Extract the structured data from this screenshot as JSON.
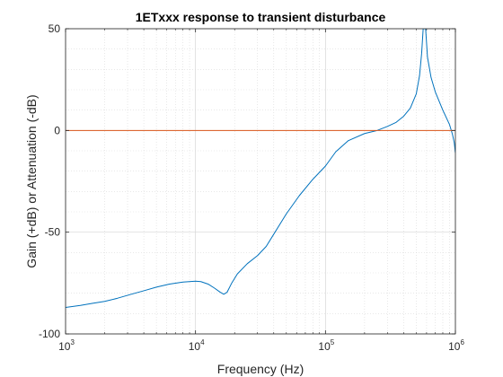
{
  "chart_data": {
    "type": "line",
    "title": "1ETxxx response to transient disturbance",
    "xlabel": "Frequency (Hz)",
    "ylabel": "Gain (+dB) or Attenuation (-dB)",
    "xscale": "log",
    "xlim": [
      1000,
      1000000
    ],
    "ylim": [
      -100,
      50
    ],
    "grid": "on",
    "minor_grid": "on",
    "legend": "none",
    "x_ticks": [
      {
        "base": "10",
        "exp": "3",
        "value": 1000
      },
      {
        "base": "10",
        "exp": "4",
        "value": 10000
      },
      {
        "base": "10",
        "exp": "5",
        "value": 100000
      },
      {
        "base": "10",
        "exp": "6",
        "value": 1000000
      }
    ],
    "y_ticks": [
      {
        "label": "50",
        "value": 50
      },
      {
        "label": "0",
        "value": 0
      },
      {
        "label": "-50",
        "value": -50
      },
      {
        "label": "-100",
        "value": -100
      }
    ],
    "series": [
      {
        "color": "#0072BD",
        "points": [
          [
            1000,
            -87
          ],
          [
            1300,
            -86
          ],
          [
            1600,
            -85
          ],
          [
            2000,
            -84
          ],
          [
            2500,
            -82.5
          ],
          [
            3200,
            -80.5
          ],
          [
            4000,
            -78.8
          ],
          [
            5000,
            -77
          ],
          [
            6300,
            -75.5
          ],
          [
            8000,
            -74.5
          ],
          [
            10000,
            -74.1
          ],
          [
            11000,
            -74.3
          ],
          [
            12500,
            -75.5
          ],
          [
            14000,
            -77.5
          ],
          [
            15500,
            -79.5
          ],
          [
            16500,
            -80.5
          ],
          [
            17500,
            -79.5
          ],
          [
            19000,
            -75
          ],
          [
            21000,
            -70.5
          ],
          [
            25000,
            -65.5
          ],
          [
            30000,
            -61.5
          ],
          [
            35000,
            -57
          ],
          [
            40000,
            -51
          ],
          [
            50000,
            -41
          ],
          [
            63000,
            -32
          ],
          [
            80000,
            -24
          ],
          [
            100000,
            -17.5
          ],
          [
            120000,
            -10.5
          ],
          [
            150000,
            -5
          ],
          [
            200000,
            -1.5
          ],
          [
            250000,
            0
          ],
          [
            300000,
            2
          ],
          [
            350000,
            4
          ],
          [
            400000,
            7
          ],
          [
            450000,
            11
          ],
          [
            500000,
            18
          ],
          [
            530000,
            27
          ],
          [
            550000,
            38
          ],
          [
            565000,
            50
          ],
          [
            590000,
            50
          ],
          [
            610000,
            36
          ],
          [
            650000,
            26
          ],
          [
            700000,
            19
          ],
          [
            800000,
            10
          ],
          [
            900000,
            3
          ],
          [
            950000,
            -2
          ],
          [
            980000,
            -6
          ],
          [
            1000000,
            -11
          ]
        ]
      },
      {
        "color": "#D95319",
        "points": [
          [
            1000,
            0
          ],
          [
            1000000,
            0
          ]
        ]
      }
    ]
  }
}
